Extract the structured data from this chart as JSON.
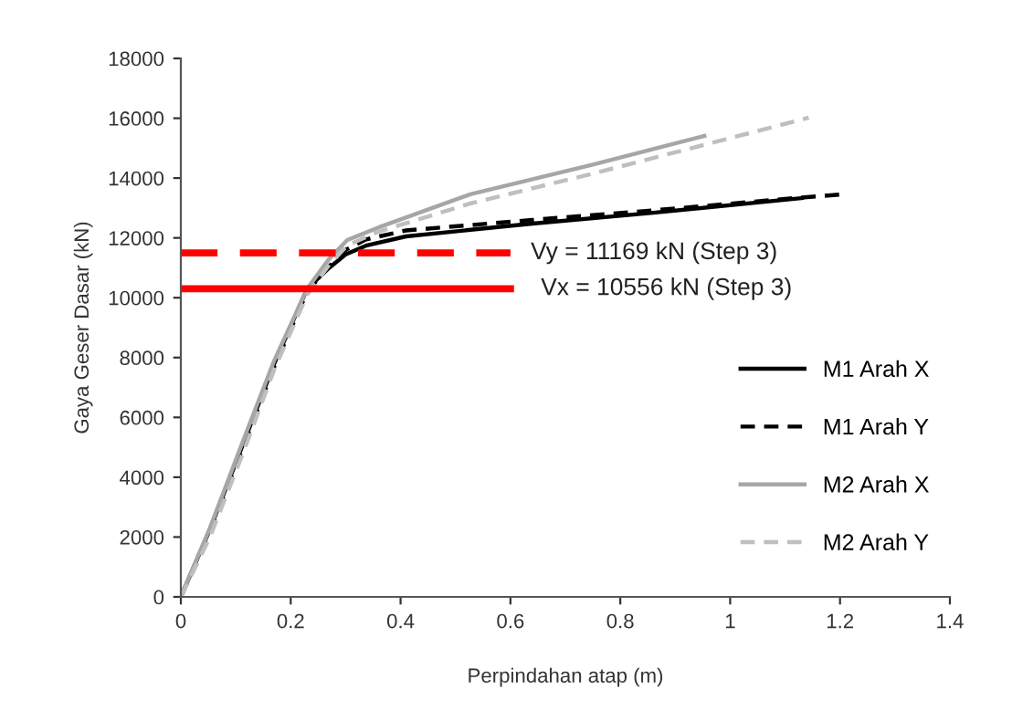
{
  "chart_data": {
    "type": "line",
    "xlabel": "Perpindahan atap (m)",
    "ylabel": "Gaya Geser Dasar (kN)",
    "xlim": [
      0,
      1.4
    ],
    "xticks": [
      0,
      0.2,
      0.4,
      0.6,
      0.8,
      1,
      1.2,
      1.4
    ],
    "ylim": [
      0,
      18000
    ],
    "yticks": [
      0,
      2000,
      4000,
      6000,
      8000,
      10000,
      12000,
      14000,
      16000,
      18000
    ],
    "grid": false,
    "legend": "bottom right",
    "series": [
      {
        "name": "M1 Arah X",
        "color": "#000000",
        "line_style": "solid",
        "x": [
          0,
          0.053,
          0.113,
          0.17,
          0.23,
          0.27,
          0.3,
          0.337,
          0.41,
          0.64,
          0.86,
          1.13
        ],
        "values": [
          0,
          2260,
          5100,
          7800,
          10300,
          11000,
          11450,
          11740,
          12050,
          12480,
          12840,
          13330
        ]
      },
      {
        "name": "M1 Arah Y",
        "color": "#000000",
        "line_style": "dashed",
        "x": [
          0,
          0.053,
          0.113,
          0.17,
          0.23,
          0.27,
          0.3,
          0.337,
          0.41,
          0.64,
          0.86,
          1.13,
          1.21
        ],
        "values": [
          0,
          2200,
          5000,
          7700,
          10200,
          11050,
          11600,
          11950,
          12250,
          12600,
          12920,
          13350,
          13460
        ]
      },
      {
        "name": "M2 Arah X",
        "color": "#a6a6a6",
        "line_style": "solid",
        "x": [
          0,
          0.053,
          0.113,
          0.17,
          0.23,
          0.27,
          0.303,
          0.36,
          0.527,
          0.75,
          0.953
        ],
        "values": [
          0,
          2300,
          5200,
          7900,
          10300,
          11300,
          11930,
          12350,
          13460,
          14450,
          15410
        ]
      },
      {
        "name": "M2 Arah Y",
        "color": "#bfbfbf",
        "line_style": "dashed",
        "x": [
          0,
          0.053,
          0.113,
          0.17,
          0.23,
          0.27,
          0.303,
          0.36,
          0.527,
          0.75,
          0.953,
          1.143
        ],
        "values": [
          0,
          2000,
          4800,
          7600,
          10100,
          11100,
          11750,
          12210,
          13150,
          14150,
          15110,
          16020
        ]
      },
      {
        "color": "#ff0000",
        "line_style": "dashed",
        "x": [
          0,
          0.6
        ],
        "values": [
          11500,
          11500
        ]
      },
      {
        "color": "#ff0000",
        "line_style": "solid",
        "x": [
          0,
          0.6
        ],
        "values": [
          10300,
          10300
        ]
      }
    ],
    "annotations": [
      "Vy = 11169 kN (Step 3)",
      "Vx = 10556 kN (Step 3)"
    ]
  }
}
